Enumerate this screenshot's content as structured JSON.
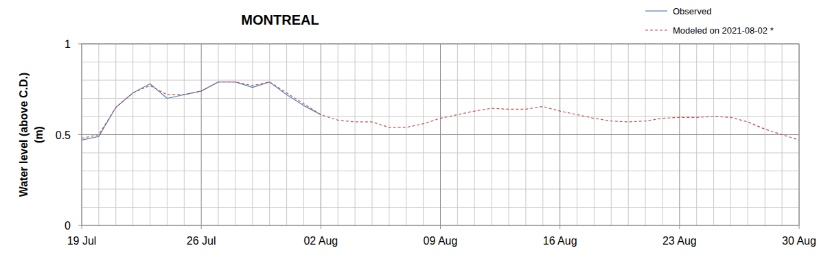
{
  "chart_data": {
    "type": "line",
    "title": "MONTREAL",
    "y_label": "Water level (above C.D.) (m)",
    "x": [
      0,
      1,
      2,
      3,
      4,
      5,
      6,
      7,
      8,
      9,
      10,
      11,
      12,
      13,
      14,
      15,
      16,
      17,
      18,
      19,
      20,
      21,
      22,
      23,
      24,
      25,
      26,
      27,
      28,
      29,
      30,
      31,
      32,
      33,
      34,
      35,
      36,
      37,
      38,
      39,
      40,
      41,
      42
    ],
    "series": [
      {
        "name": "Observed",
        "color": "#4f81bd",
        "line_style": "solid",
        "values": [
          0.47,
          0.49,
          0.65,
          0.73,
          0.78,
          0.7,
          0.72,
          0.74,
          0.79,
          0.79,
          0.76,
          0.79,
          0.72,
          0.66,
          0.61,
          null,
          null,
          null,
          null,
          null,
          null,
          null,
          null,
          null,
          null,
          null,
          null,
          null,
          null,
          null,
          null,
          null,
          null,
          null,
          null,
          null,
          null,
          null,
          null,
          null,
          null,
          null,
          null
        ]
      },
      {
        "name": "Modeled on 2021-08-02 *",
        "color": "#c0504d",
        "line_style": "dashed",
        "values": [
          0.48,
          0.5,
          0.65,
          0.73,
          0.77,
          0.72,
          0.72,
          0.74,
          0.79,
          0.79,
          0.77,
          0.79,
          0.73,
          0.67,
          0.61,
          0.58,
          0.57,
          0.57,
          0.54,
          0.54,
          0.56,
          0.59,
          0.61,
          0.63,
          0.645,
          0.64,
          0.64,
          0.655,
          0.63,
          0.61,
          0.59,
          0.575,
          0.57,
          0.575,
          0.59,
          0.595,
          0.595,
          0.6,
          0.595,
          0.57,
          0.53,
          0.5,
          0.47
        ]
      }
    ],
    "xlim": [
      0,
      42
    ],
    "xticks": [
      {
        "value": 0,
        "label": "19 Jul"
      },
      {
        "value": 7,
        "label": "26 Jul"
      },
      {
        "value": 14,
        "label": "02 Aug"
      },
      {
        "value": 21,
        "label": "09 Aug"
      },
      {
        "value": 28,
        "label": "16 Aug"
      },
      {
        "value": 35,
        "label": "23 Aug"
      },
      {
        "value": 42,
        "label": "30 Aug"
      }
    ],
    "ylim": [
      0,
      1
    ],
    "yticks": [
      0,
      0.5,
      1
    ],
    "grid": true,
    "legend": "upper right"
  }
}
